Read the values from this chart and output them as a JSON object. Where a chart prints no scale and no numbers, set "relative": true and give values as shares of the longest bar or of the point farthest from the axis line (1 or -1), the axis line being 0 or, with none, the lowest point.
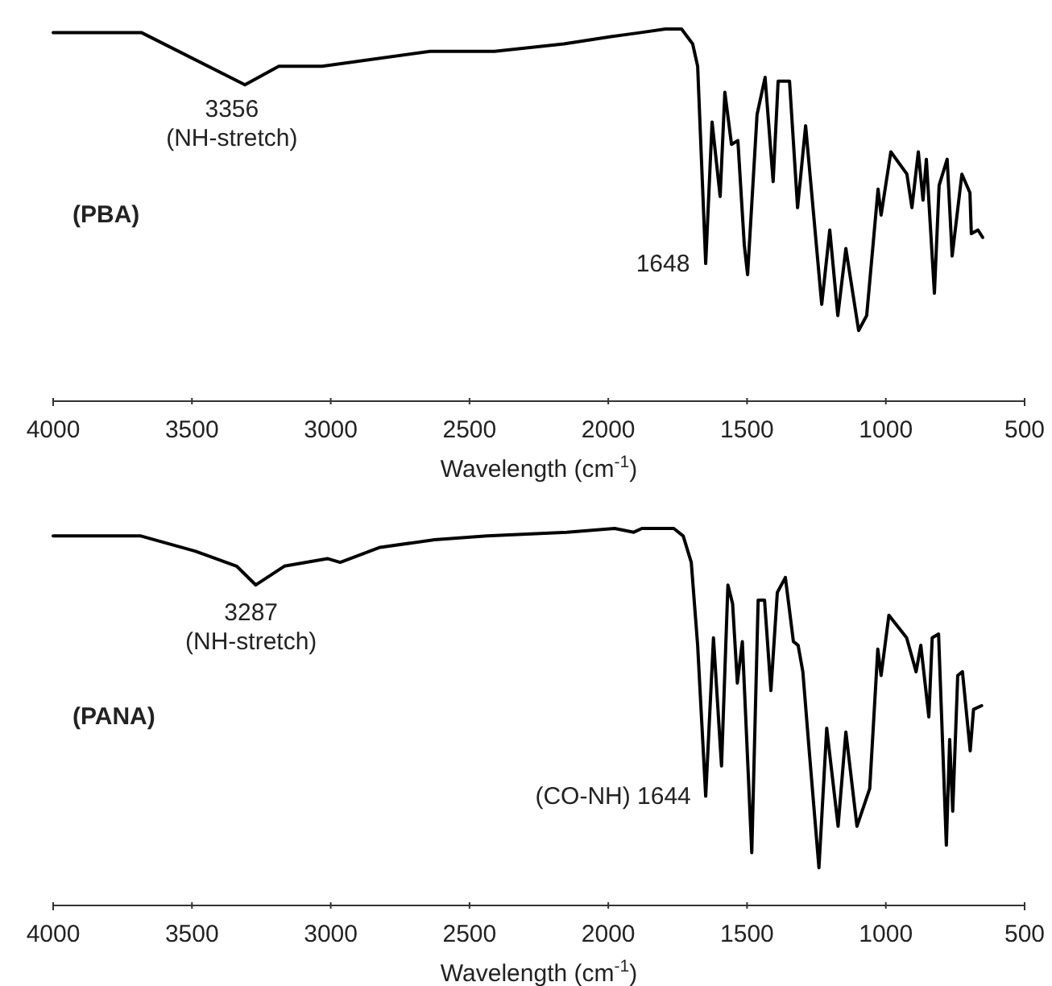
{
  "chart_data": [
    {
      "type": "line",
      "title": "(PBA)",
      "xlabel": "Wavelength (cm$^{-1}$)",
      "relative": true,
      "xlim": [
        4000,
        500
      ],
      "xticks": [
        4000,
        3500,
        3000,
        2500,
        2000,
        1500,
        1000,
        500
      ],
      "series": [
        {
          "color": "#000000",
          "x": [
            4000,
            3681,
            3309,
            3187,
            3031,
            2642,
            2410,
            2160,
            1986,
            1887,
            1794,
            1736,
            1696,
            1678,
            1649,
            1626,
            1597,
            1580,
            1556,
            1533,
            1510,
            1498,
            1464,
            1435,
            1406,
            1388,
            1347,
            1318,
            1289,
            1231,
            1202,
            1173,
            1144,
            1098,
            1069,
            1028,
            1017,
            982,
            924,
            906,
            883,
            866,
            854,
            825,
            808,
            779,
            761,
            726,
            697,
            692,
            668,
            651
          ],
          "values": [
            0.99,
            0.99,
            0.85,
            0.9,
            0.9,
            0.94,
            0.94,
            0.96,
            0.98,
            0.99,
            1.0,
            1.0,
            0.96,
            0.9,
            0.37,
            0.75,
            0.55,
            0.83,
            0.69,
            0.7,
            0.42,
            0.34,
            0.77,
            0.87,
            0.59,
            0.86,
            0.86,
            0.52,
            0.74,
            0.26,
            0.46,
            0.23,
            0.41,
            0.19,
            0.23,
            0.57,
            0.5,
            0.67,
            0.61,
            0.52,
            0.67,
            0.54,
            0.65,
            0.29,
            0.58,
            0.65,
            0.39,
            0.61,
            0.56,
            0.45,
            0.46,
            0.44
          ]
        }
      ],
      "annotations": [
        {
          "text": "3356\n(NH-stretch)",
          "x": 3356,
          "y": 0.86
        },
        {
          "text": "1648",
          "x": 1648,
          "y": 0.37
        }
      ]
    },
    {
      "type": "line",
      "title": "(PANA)",
      "xlabel": "Wavelength (cm$^{-1}$)",
      "relative": true,
      "xlim": [
        4000,
        500
      ],
      "xticks": [
        4000,
        3500,
        3000,
        2500,
        2000,
        1500,
        1000,
        500
      ],
      "series": [
        {
          "color": "#000000",
          "x": [
            4000,
            3747,
            3684,
            3489,
            3339,
            3270,
            3167,
            3012,
            2966,
            2822,
            2626,
            2437,
            2149,
            1977,
            1908,
            1879,
            1764,
            1730,
            1701,
            1678,
            1649,
            1621,
            1592,
            1569,
            1552,
            1535,
            1517,
            1483,
            1460,
            1437,
            1414,
            1391,
            1362,
            1333,
            1316,
            1299,
            1276,
            1241,
            1213,
            1172,
            1144,
            1104,
            1058,
            1029,
            1017,
            989,
            925,
            891,
            874,
            845,
            833,
            810,
            782,
            770,
            759,
            741,
            724,
            696,
            684,
            655
          ],
          "values": [
            0.98,
            0.98,
            0.98,
            0.94,
            0.9,
            0.85,
            0.9,
            0.92,
            0.91,
            0.95,
            0.97,
            0.98,
            0.99,
            1.0,
            0.99,
            1.0,
            1.0,
            0.98,
            0.91,
            0.69,
            0.29,
            0.71,
            0.37,
            0.85,
            0.8,
            0.59,
            0.7,
            0.14,
            0.81,
            0.81,
            0.57,
            0.83,
            0.87,
            0.7,
            0.69,
            0.62,
            0.41,
            0.1,
            0.47,
            0.21,
            0.46,
            0.21,
            0.31,
            0.68,
            0.61,
            0.77,
            0.71,
            0.62,
            0.69,
            0.5,
            0.71,
            0.72,
            0.16,
            0.44,
            0.25,
            0.61,
            0.62,
            0.41,
            0.52,
            0.53
          ]
        }
      ],
      "annotations": [
        {
          "text": "3287\n(NH-stretch)",
          "x": 3287,
          "y": 0.85
        },
        {
          "text": "(CO-NH) 1644",
          "x": 1644,
          "y": 0.29
        }
      ]
    }
  ]
}
